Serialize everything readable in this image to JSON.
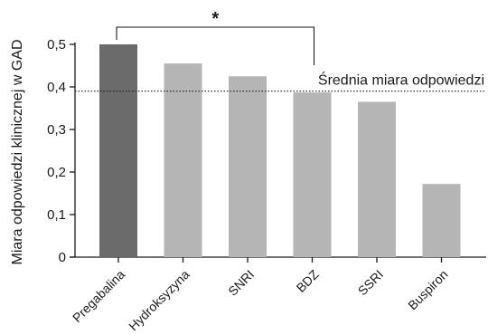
{
  "chart_data": {
    "type": "bar",
    "ylabel": "Miara odpowiedzi klinicznej w GAD",
    "xlabel": "",
    "categories": [
      "Pregabalina",
      "Hydroksyzyna",
      "SNRI",
      "BDZ",
      "SSRI",
      "Buspiron"
    ],
    "values": [
      0.5,
      0.455,
      0.425,
      0.387,
      0.365,
      0.172
    ],
    "ylim": [
      0,
      0.5
    ],
    "yticks": [
      0,
      0.1,
      0.2,
      0.3,
      0.4,
      0.5
    ],
    "ytick_labels": [
      "0",
      "0,1",
      "0,2",
      "0,3",
      "0,4",
      "0,5"
    ],
    "bar_colors": [
      "#6b6b6b",
      "#b5b5b5",
      "#b5b5b5",
      "#b5b5b5",
      "#b5b5b5",
      "#b5b5b5"
    ],
    "reference_line": {
      "value": 0.39,
      "label": "Średnia miara odpowiedzi",
      "style": "dotted"
    },
    "significance": {
      "from": "Pregabalina",
      "to": "BDZ",
      "label": "*"
    },
    "grid": false,
    "legend": "none"
  }
}
